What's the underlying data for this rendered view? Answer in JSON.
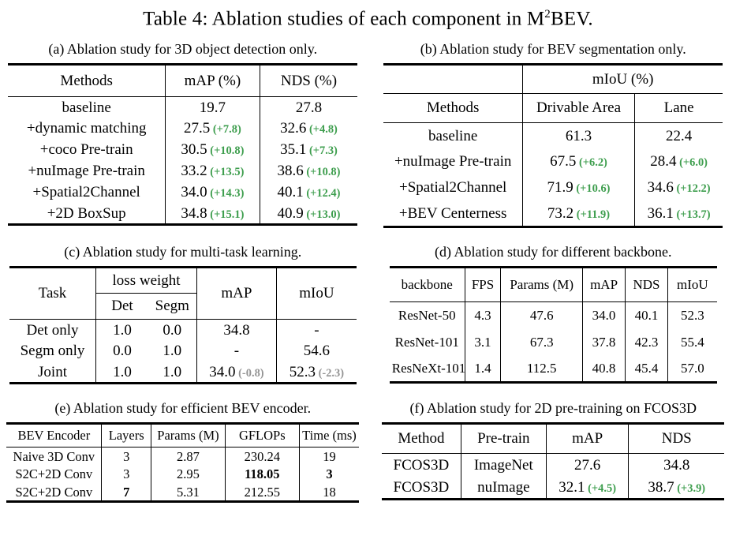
{
  "title": {
    "pre": "Table 4: Ablation studies of each component in M",
    "sup": "2",
    "post": "BEV."
  },
  "colors": {
    "gain": "#3e9e4e",
    "loss": "#949494",
    "rule": "#000000",
    "background": "#ffffff"
  },
  "tables": {
    "a": {
      "caption": "(a) Ablation study for 3D object detection only.",
      "headers": [
        "Methods",
        "mAP (%)",
        "NDS (%)"
      ],
      "rows": [
        [
          {
            "v": "baseline"
          },
          {
            "v": "19.7"
          },
          {
            "v": "27.8"
          }
        ],
        [
          {
            "v": "+dynamic matching"
          },
          {
            "v": "27.5",
            "d": "(+7.8)"
          },
          {
            "v": "32.6",
            "d": "(+4.8)"
          }
        ],
        [
          {
            "v": "+coco Pre-train"
          },
          {
            "v": "30.5",
            "d": "(+10.8)"
          },
          {
            "v": "35.1",
            "d": "(+7.3)"
          }
        ],
        [
          {
            "v": "+nuImage Pre-train"
          },
          {
            "v": "33.2",
            "d": "(+13.5)"
          },
          {
            "v": "38.6",
            "d": "(+10.8)"
          }
        ],
        [
          {
            "v": "+Spatial2Channel"
          },
          {
            "v": "34.0",
            "d": "(+14.3)"
          },
          {
            "v": "40.1",
            "d": "(+12.4)"
          }
        ],
        [
          {
            "v": "+2D BoxSup"
          },
          {
            "v": "34.8",
            "d": "(+15.1)"
          },
          {
            "v": "40.9",
            "d": "(+13.0)"
          }
        ]
      ]
    },
    "b": {
      "caption": "(b) Ablation study for BEV segmentation only.",
      "group_header": "mIoU (%)",
      "headers": [
        "Methods",
        "Drivable Area",
        "Lane"
      ],
      "rows": [
        [
          {
            "v": "baseline"
          },
          {
            "v": "61.3"
          },
          {
            "v": "22.4"
          }
        ],
        [
          {
            "v": "+nuImage Pre-train"
          },
          {
            "v": "67.5",
            "d": "(+6.2)"
          },
          {
            "v": "28.4",
            "d": "(+6.0)"
          }
        ],
        [
          {
            "v": "+Spatial2Channel"
          },
          {
            "v": "71.9",
            "d": "(+10.6)"
          },
          {
            "v": "34.6",
            "d": "(+12.2)"
          }
        ],
        [
          {
            "v": "+BEV Centerness"
          },
          {
            "v": "73.2",
            "d": "(+11.9)"
          },
          {
            "v": "36.1",
            "d": "(+13.7)"
          }
        ]
      ]
    },
    "c": {
      "caption": "(c) Ablation study for multi-task learning.",
      "headers": {
        "task": "Task",
        "loss_weight": "loss weight",
        "det": "Det",
        "segm": "Segm",
        "map": "mAP",
        "miou": "mIoU"
      },
      "rows": [
        [
          {
            "v": "Det only"
          },
          {
            "v": "1.0"
          },
          {
            "v": "0.0"
          },
          {
            "v": "34.8"
          },
          {
            "v": "-"
          }
        ],
        [
          {
            "v": "Segm only"
          },
          {
            "v": "0.0"
          },
          {
            "v": "1.0"
          },
          {
            "v": "-"
          },
          {
            "v": "54.6"
          }
        ],
        [
          {
            "v": "Joint"
          },
          {
            "v": "1.0"
          },
          {
            "v": "1.0"
          },
          {
            "v": "34.0",
            "d": "(-0.8)"
          },
          {
            "v": "52.3",
            "d": "(-2.3)"
          }
        ]
      ]
    },
    "d": {
      "caption": "(d) Ablation study for different backbone.",
      "headers": [
        "backbone",
        "FPS",
        "Params (M)",
        "mAP",
        "NDS",
        "mIoU"
      ],
      "rows": [
        [
          {
            "v": "ResNet-50"
          },
          {
            "v": "4.3"
          },
          {
            "v": "47.6"
          },
          {
            "v": "34.0"
          },
          {
            "v": "40.1"
          },
          {
            "v": "52.3"
          }
        ],
        [
          {
            "v": "ResNet-101"
          },
          {
            "v": "3.1"
          },
          {
            "v": "67.3"
          },
          {
            "v": "37.8"
          },
          {
            "v": "42.3"
          },
          {
            "v": "55.4"
          }
        ],
        [
          {
            "v": "ResNeXt-101"
          },
          {
            "v": "1.4"
          },
          {
            "v": "112.5"
          },
          {
            "v": "40.8"
          },
          {
            "v": "45.4"
          },
          {
            "v": "57.0"
          }
        ]
      ]
    },
    "e": {
      "caption": "(e) Ablation study for efficient BEV encoder.",
      "headers": [
        "BEV Encoder",
        "Layers",
        "Params (M)",
        "GFLOPs",
        "Time (ms)"
      ],
      "rows": [
        [
          {
            "v": "Naive 3D Conv"
          },
          {
            "v": "3"
          },
          {
            "v": "2.87"
          },
          {
            "v": "230.24"
          },
          {
            "v": "19"
          }
        ],
        [
          {
            "v": "S2C+2D Conv"
          },
          {
            "v": "3"
          },
          {
            "v": "2.95"
          },
          {
            "v": "118.05",
            "b": true
          },
          {
            "v": "3",
            "b": true
          }
        ],
        [
          {
            "v": "S2C+2D Conv"
          },
          {
            "v": "7",
            "b": true
          },
          {
            "v": "5.31"
          },
          {
            "v": "212.55"
          },
          {
            "v": "18"
          }
        ]
      ]
    },
    "f": {
      "caption": "(f) Ablation study for 2D pre-training on FCOS3D",
      "headers": [
        "Method",
        "Pre-train",
        "mAP",
        "NDS"
      ],
      "rows": [
        [
          {
            "v": "FCOS3D"
          },
          {
            "v": "ImageNet"
          },
          {
            "v": "27.6"
          },
          {
            "v": "34.8"
          }
        ],
        [
          {
            "v": "FCOS3D"
          },
          {
            "v": "nuImage"
          },
          {
            "v": "32.1",
            "d": "(+4.5)"
          },
          {
            "v": "38.7",
            "d": "(+3.9)"
          }
        ]
      ]
    }
  }
}
